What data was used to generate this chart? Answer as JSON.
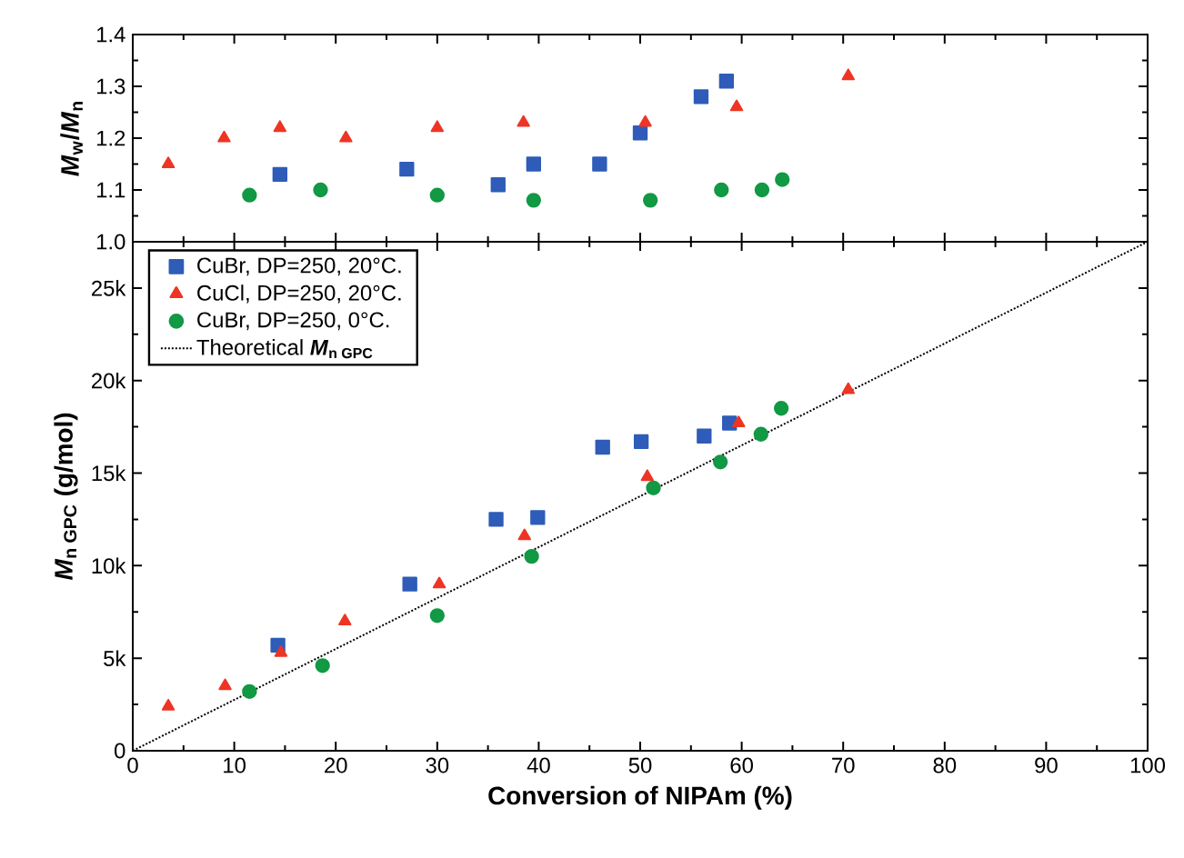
{
  "chart_data": [
    {
      "type": "scatter",
      "ylabel": "*M*$_{w}$/*M*$_{n}$",
      "xlim": [
        0,
        100
      ],
      "xticks": [
        0,
        10,
        20,
        30,
        40,
        50,
        60,
        70,
        80,
        90,
        100
      ],
      "ylim": [
        1.0,
        1.4
      ],
      "yticks": [
        {
          "value": 1.0,
          "label": "1.0"
        },
        {
          "value": 1.1,
          "label": "1.1"
        },
        {
          "value": 1.2,
          "label": "1.2"
        },
        {
          "value": 1.3,
          "label": "1.3"
        },
        {
          "value": 1.4,
          "label": "1.4"
        }
      ],
      "tick_labels": "y",
      "grid": false,
      "legend": false,
      "series": [
        {
          "color": "#2e5cb8",
          "marker": "square",
          "x": [
            14.5,
            27,
            36,
            39.5,
            46,
            50,
            56,
            58.5
          ],
          "values": [
            1.13,
            1.14,
            1.11,
            1.15,
            1.15,
            1.21,
            1.28,
            1.31
          ]
        },
        {
          "color": "#ee3524",
          "marker": "triangle",
          "x": [
            3.5,
            9,
            14.5,
            21,
            30,
            38.5,
            50.5,
            59.5,
            70.5
          ],
          "values": [
            1.15,
            1.2,
            1.22,
            1.2,
            1.22,
            1.23,
            1.23,
            1.26,
            1.32
          ]
        },
        {
          "color": "#119944",
          "marker": "circle",
          "x": [
            11.5,
            18.5,
            30,
            39.5,
            51,
            58,
            62,
            64
          ],
          "values": [
            1.09,
            1.1,
            1.09,
            1.08,
            1.08,
            1.1,
            1.1,
            1.12
          ]
        }
      ]
    },
    {
      "type": "scatter",
      "xlabel": "Conversion of NIPAm (%)",
      "ylabel": "\\textbf{\\textit{M}}_{\\textbf{n GPC}}\\ \\textbf{(g/mol)}",
      "xlim": [
        0,
        100
      ],
      "xticks": [
        0,
        10,
        20,
        30,
        40,
        50,
        60,
        70,
        80,
        90,
        100
      ],
      "ylim": [
        0,
        27500
      ],
      "yticks": [
        0,
        {
          "value": 5000,
          "label": "5k"
        },
        {
          "value": 10000,
          "label": "10k"
        },
        {
          "value": 15000,
          "label": "15k"
        },
        {
          "value": 20000,
          "label": "20k"
        },
        {
          "value": 25000,
          "label": "25k"
        }
      ],
      "grid": false,
      "legend": "top left",
      "series": [
        {
          "name": "CuBr, DP=250, 20°C.",
          "color": "#2e5cb8",
          "marker": "square",
          "x": [
            14.3,
            27.3,
            35.8,
            39.9,
            46.3,
            50.1,
            56.3,
            58.8
          ],
          "values": [
            5700,
            9000,
            12500,
            12600,
            16400,
            16700,
            17000,
            17700
          ]
        },
        {
          "name": "CuCl, DP=250, 20°C.",
          "color": "#ee3524",
          "marker": "triangle",
          "x": [
            3.5,
            9.1,
            14.6,
            20.9,
            30.2,
            38.6,
            50.7,
            59.7,
            70.5
          ],
          "values": [
            2400,
            3500,
            5300,
            7000,
            9000,
            11600,
            14800,
            17700,
            19500
          ]
        },
        {
          "name": "CuBr, DP=250, 0°C.",
          "color": "#119944",
          "marker": "circle",
          "x": [
            11.5,
            18.7,
            30,
            39.3,
            51.3,
            57.9,
            61.9,
            63.9
          ],
          "values": [
            3200,
            4600,
            7300,
            10500,
            14200,
            15600,
            17100,
            18500
          ]
        },
        {
          "name": "\\text{Theoretical }\\textbf{\\textit{M}}_{\\textbf{n GPC}}",
          "type": "line",
          "color": "#000000",
          "marker": "none",
          "line_style": "dotted",
          "x": [
            0,
            100
          ],
          "values": [
            0,
            27500
          ]
        }
      ]
    }
  ]
}
